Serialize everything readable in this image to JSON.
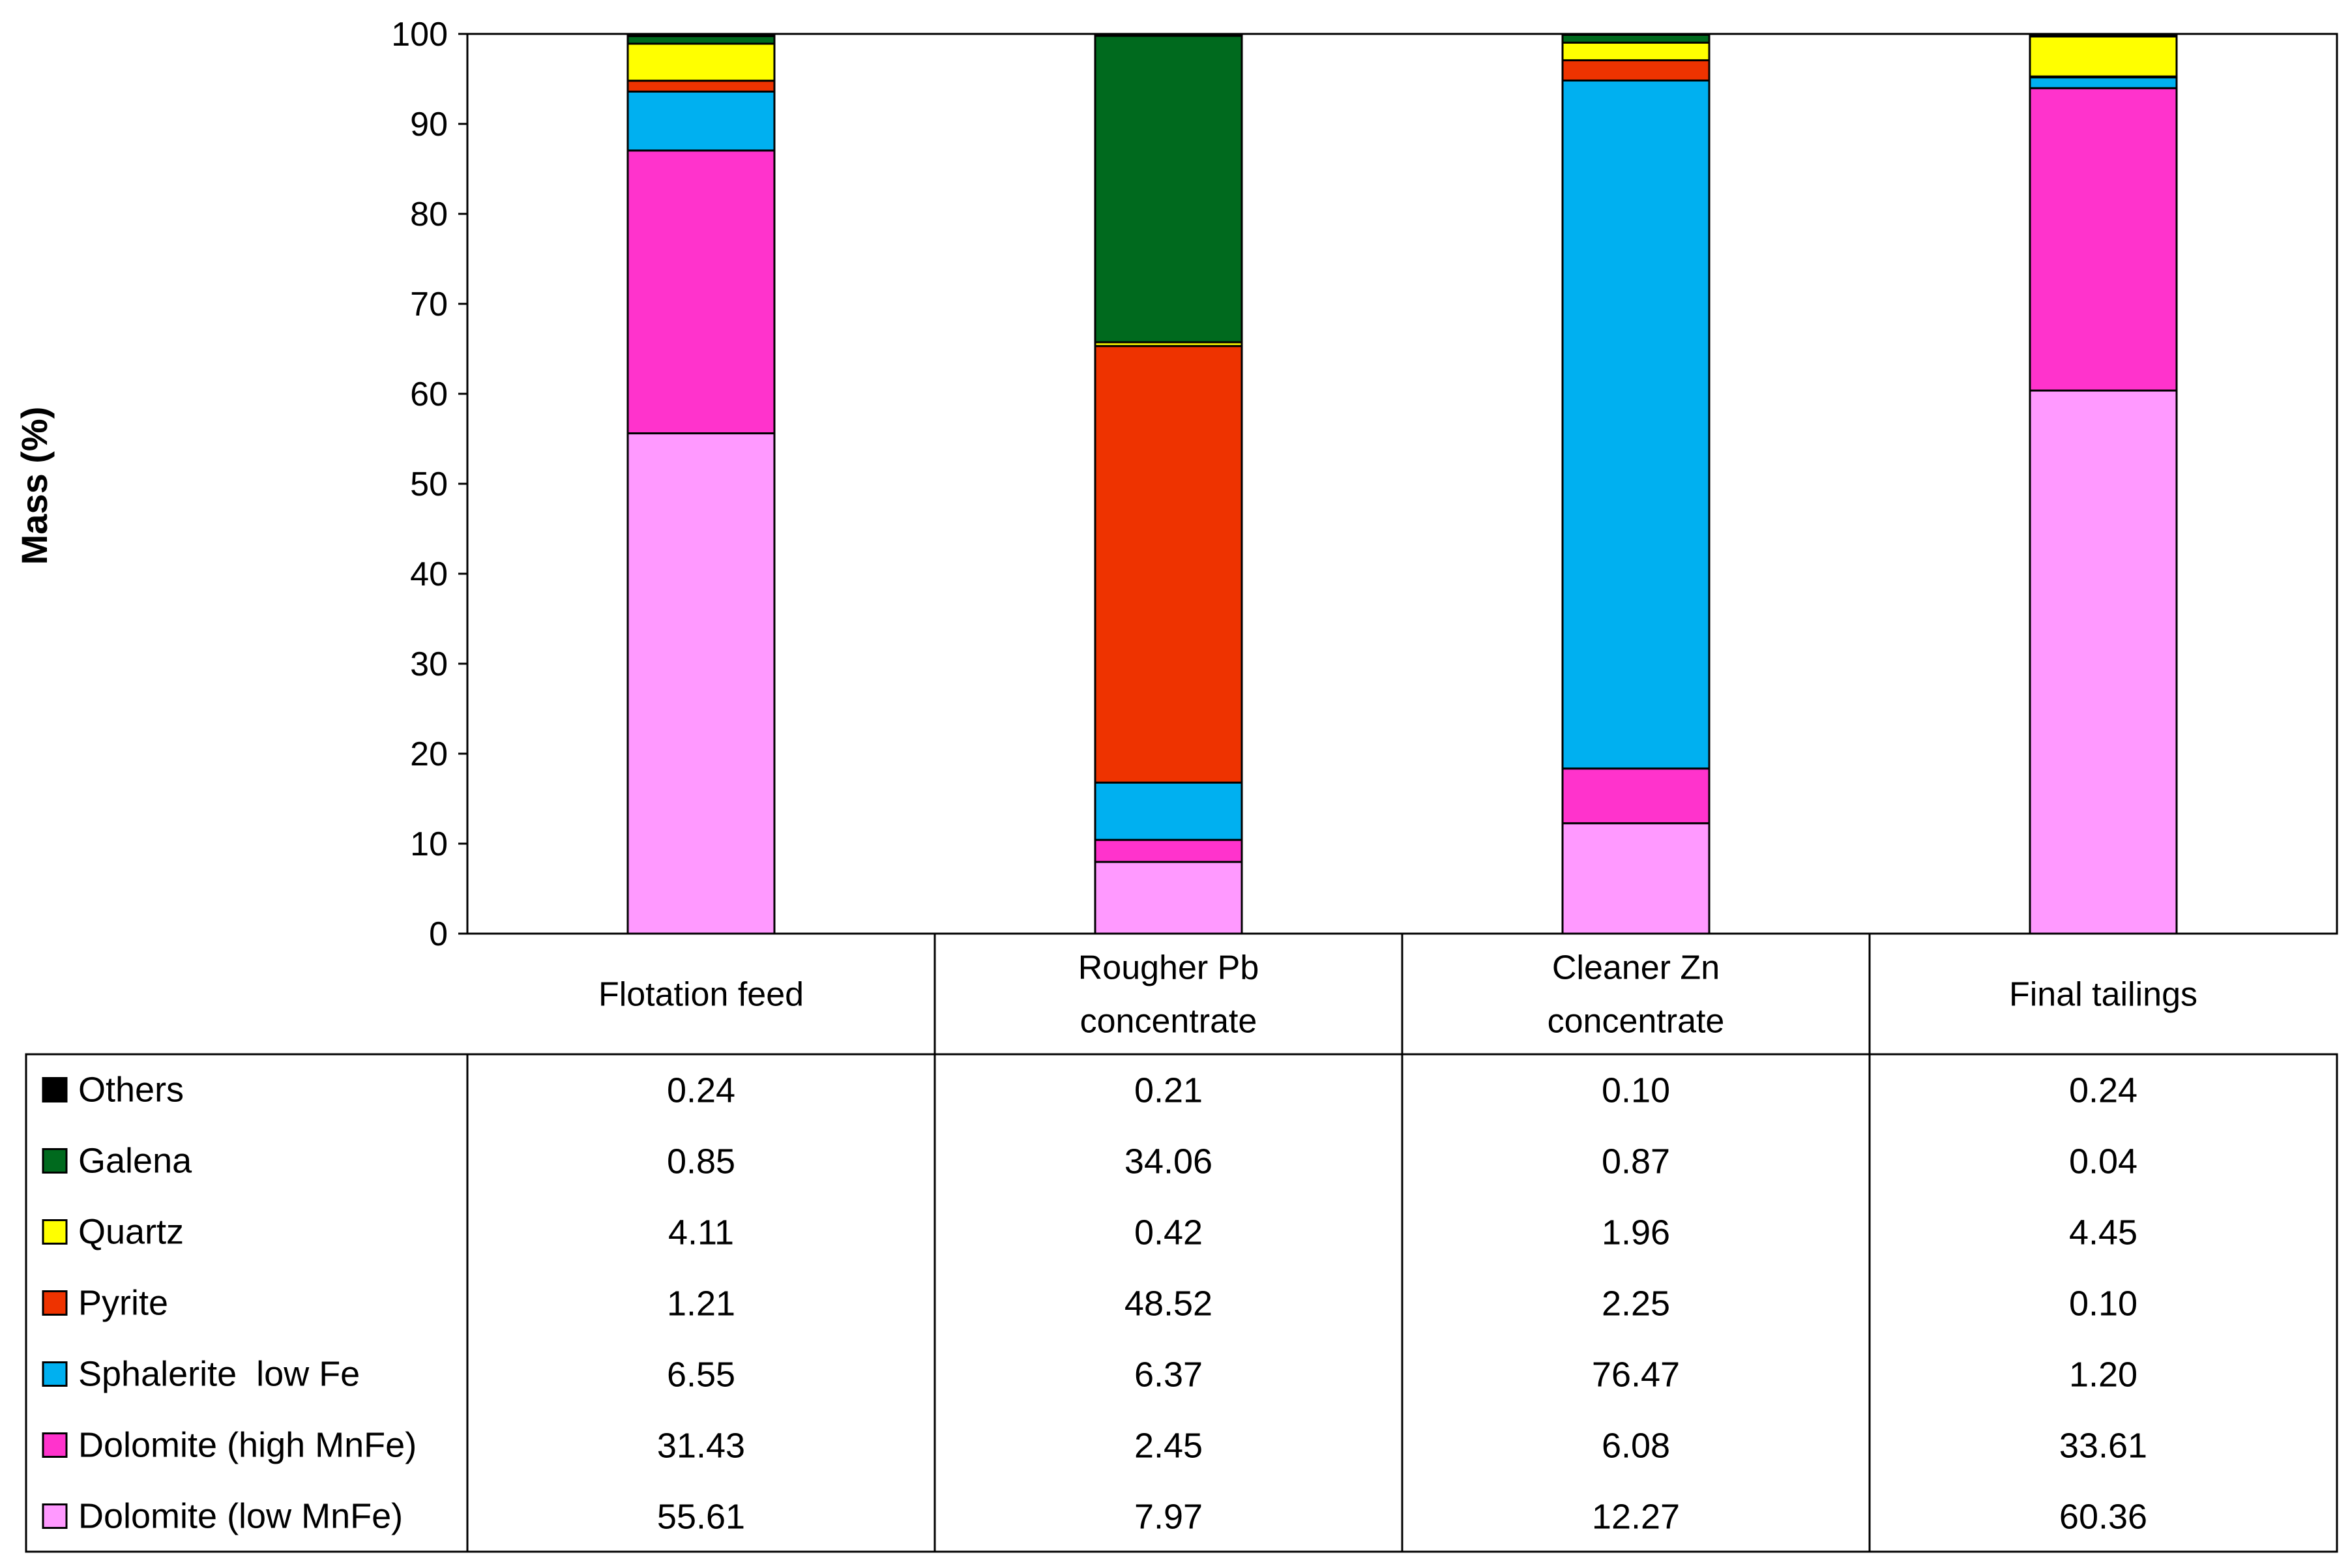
{
  "chart_data": {
    "type": "bar",
    "stacked": true,
    "data_table": true,
    "categories": [
      "Flotation feed",
      "Rougher Pb concentrate",
      "Cleaner Zn concentrate",
      "Final tailings"
    ],
    "category_lines": [
      [
        "Flotation feed"
      ],
      [
        "Rougher Pb",
        "concentrate"
      ],
      [
        "Cleaner Zn",
        "concentrate"
      ],
      [
        "Final tailings"
      ]
    ],
    "series": [
      {
        "name": "Dolomite (low MnFe)",
        "color": "#FF99FF",
        "values": [
          55.61,
          7.97,
          12.27,
          60.36
        ],
        "labels": [
          "55.61",
          "7.97",
          "12.27",
          "60.36"
        ]
      },
      {
        "name": "Dolomite (high MnFe)",
        "color": "#FF33CC",
        "values": [
          31.43,
          2.45,
          6.08,
          33.61
        ],
        "labels": [
          "31.43",
          "2.45",
          "6.08",
          "33.61"
        ]
      },
      {
        "name": "Sphalerite  low Fe",
        "color": "#00B0F0",
        "values": [
          6.55,
          6.37,
          76.47,
          1.2
        ],
        "labels": [
          "6.55",
          "6.37",
          "76.47",
          "1.20"
        ]
      },
      {
        "name": "Pyrite",
        "color": "#EE3300",
        "values": [
          1.21,
          48.52,
          2.25,
          0.1
        ],
        "labels": [
          "1.21",
          "48.52",
          "2.25",
          "0.10"
        ]
      },
      {
        "name": "Quartz",
        "color": "#FFFF00",
        "values": [
          4.11,
          0.42,
          1.96,
          4.45
        ],
        "labels": [
          "4.11",
          "0.42",
          "1.96",
          "4.45"
        ]
      },
      {
        "name": "Galena",
        "color": "#006A1E",
        "values": [
          0.85,
          34.06,
          0.87,
          0.04
        ],
        "labels": [
          "0.85",
          "34.06",
          "0.87",
          "0.04"
        ]
      },
      {
        "name": "Others",
        "color": "#000000",
        "values": [
          0.24,
          0.21,
          0.1,
          0.24
        ],
        "labels": [
          "0.24",
          "0.21",
          "0.10",
          "0.24"
        ]
      }
    ],
    "ylabel": "Mass (%)",
    "ylim": [
      0,
      100
    ],
    "yticks": [
      0,
      10,
      20,
      30,
      40,
      50,
      60,
      70,
      80,
      90,
      100
    ],
    "ytick_labels": [
      "0",
      "10",
      "20",
      "30",
      "40",
      "50",
      "60",
      "70",
      "80",
      "90",
      "100"
    ],
    "grid": false,
    "legend_position": "data table rows, left"
  }
}
